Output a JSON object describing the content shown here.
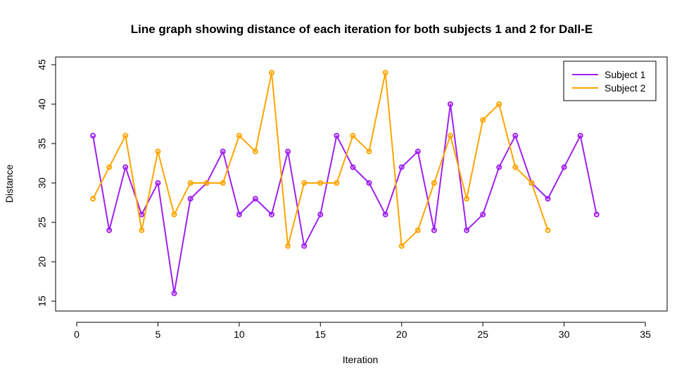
{
  "chart_data": {
    "type": "line",
    "title": "Line graph showing distance of each iteration for both subjects 1 and 2 for Dall-E",
    "xlabel": "Iteration",
    "ylabel": "Distance",
    "xlim": [
      0,
      35
    ],
    "ylim": [
      15,
      45
    ],
    "xticks": [
      0,
      5,
      10,
      15,
      20,
      25,
      30,
      35
    ],
    "yticks": [
      15,
      20,
      25,
      30,
      35,
      40,
      45
    ],
    "grid": false,
    "legend_position": "top-right",
    "series": [
      {
        "name": "Subject 1",
        "color": "#a020f0",
        "x": [
          1,
          2,
          3,
          4,
          5,
          6,
          7,
          8,
          9,
          10,
          11,
          12,
          13,
          14,
          15,
          16,
          17,
          18,
          19,
          20,
          21,
          22,
          23,
          24,
          25,
          26,
          27,
          28,
          29,
          30,
          31,
          32
        ],
        "values": [
          36,
          24,
          32,
          26,
          30,
          16,
          28,
          30,
          34,
          26,
          28,
          26,
          34,
          22,
          26,
          36,
          32,
          30,
          26,
          32,
          34,
          24,
          40,
          24,
          26,
          32,
          36,
          30,
          28,
          32,
          36,
          26
        ]
      },
      {
        "name": "Subject 2",
        "color": "#ffa500",
        "x": [
          1,
          2,
          3,
          4,
          5,
          6,
          7,
          8,
          9,
          10,
          11,
          12,
          13,
          14,
          15,
          16,
          17,
          18,
          19,
          20,
          21,
          22,
          23,
          24,
          25,
          26,
          27,
          28,
          29
        ],
        "values": [
          28,
          32,
          36,
          24,
          34,
          26,
          30,
          30,
          30,
          36,
          34,
          44,
          22,
          30,
          30,
          30,
          36,
          34,
          44,
          22,
          24,
          30,
          36,
          28,
          38,
          40,
          32,
          30,
          24
        ]
      }
    ]
  }
}
